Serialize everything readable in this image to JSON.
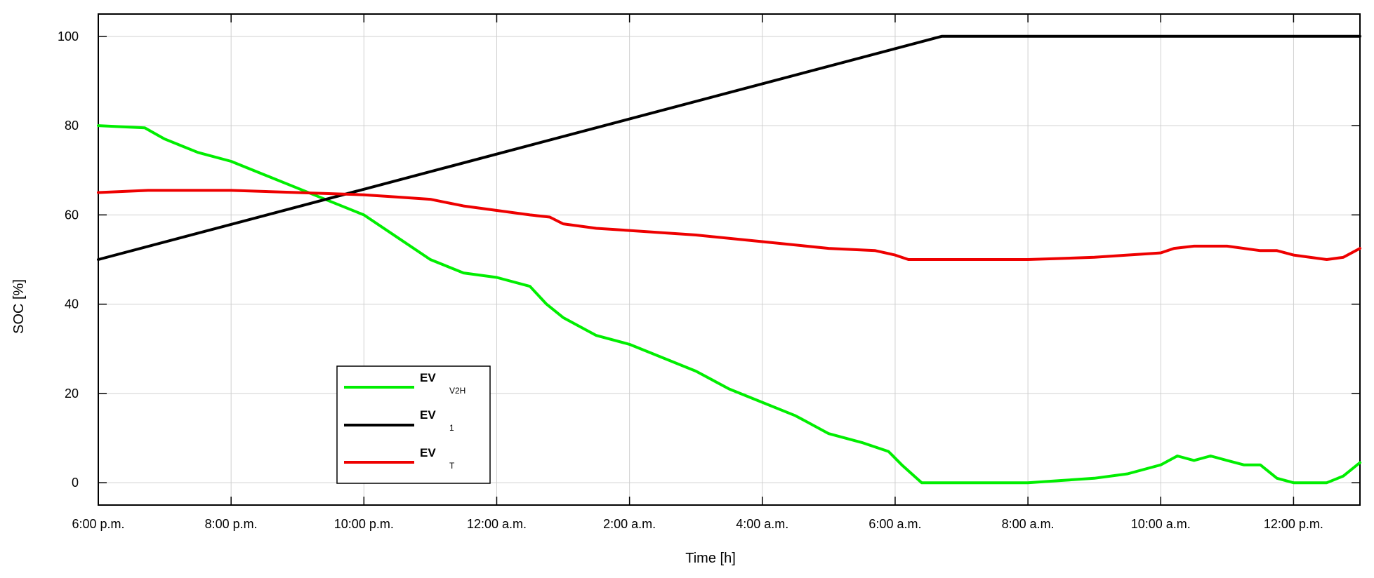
{
  "chart_data": {
    "type": "line",
    "title": "",
    "xlabel": "Time [h]",
    "ylabel": "SOC [%]",
    "xlim": [
      0,
      19
    ],
    "ylim": [
      -5,
      105
    ],
    "x_ticks": [
      {
        "value": 0,
        "label": "6:00 p.m."
      },
      {
        "value": 2,
        "label": "8:00 p.m."
      },
      {
        "value": 4,
        "label": "10:00 p.m."
      },
      {
        "value": 6,
        "label": "12:00 a.m."
      },
      {
        "value": 8,
        "label": "2:00 a.m."
      },
      {
        "value": 10,
        "label": "4:00 a.m."
      },
      {
        "value": 12,
        "label": "6:00 a.m."
      },
      {
        "value": 14,
        "label": "8:00 a.m."
      },
      {
        "value": 16,
        "label": "10:00 a.m."
      },
      {
        "value": 18,
        "label": "12:00 p.m."
      }
    ],
    "y_ticks": [
      {
        "value": 0,
        "label": "0"
      },
      {
        "value": 20,
        "label": "20"
      },
      {
        "value": 40,
        "label": "40"
      },
      {
        "value": 60,
        "label": "60"
      },
      {
        "value": 80,
        "label": "80"
      },
      {
        "value": 100,
        "label": "100"
      }
    ],
    "grid": true,
    "legend_position": "bottom-left",
    "series": [
      {
        "name": "EV",
        "subscript": "V2H",
        "color": "#00ee00",
        "x": [
          0,
          0.7,
          1,
          1.5,
          2,
          2.5,
          3,
          3.5,
          4,
          4.5,
          5,
          5.5,
          6,
          6.5,
          6.75,
          7,
          7.5,
          8,
          8.5,
          9,
          9.5,
          10,
          10.5,
          11,
          11.5,
          11.9,
          12.1,
          12.4,
          13,
          14,
          14.5,
          15,
          15.5,
          16,
          16.25,
          16.5,
          16.75,
          17,
          17.25,
          17.5,
          17.75,
          18,
          18.5,
          18.75,
          19
        ],
        "y": [
          80,
          79.5,
          77,
          74,
          72,
          69,
          66,
          63,
          60,
          55,
          50,
          47,
          46,
          44,
          40,
          37,
          33,
          31,
          28,
          25,
          21,
          18,
          15,
          11,
          9,
          7,
          4,
          0,
          0,
          0,
          0.5,
          1,
          2,
          4,
          6,
          5,
          6,
          5,
          4,
          4,
          1,
          0,
          0,
          1.5,
          4.5
        ]
      },
      {
        "name": "EV",
        "subscript": "1",
        "color": "#000000",
        "x": [
          0,
          12.7,
          19
        ],
        "y": [
          50,
          100,
          100
        ]
      },
      {
        "name": "EV",
        "subscript": "T",
        "color": "#ee0000",
        "x": [
          0,
          0.75,
          1,
          2,
          3,
          4,
          4.5,
          5,
          5.5,
          6,
          6.5,
          6.8,
          7,
          7.5,
          8,
          9,
          10,
          11,
          11.7,
          12,
          12.2,
          12.5,
          12.7,
          14,
          15,
          15.5,
          16,
          16.2,
          16.5,
          16.75,
          17,
          17.5,
          17.75,
          18,
          18.5,
          18.75,
          19
        ],
        "y": [
          65,
          65.5,
          65.5,
          65.5,
          65,
          64.5,
          64,
          63.5,
          62,
          61,
          60,
          59.5,
          58,
          57,
          56.5,
          55.5,
          54,
          52.5,
          52,
          51,
          50,
          50,
          50,
          50,
          50.5,
          51,
          51.5,
          52.5,
          53,
          53,
          53,
          52,
          52,
          51,
          50,
          50.5,
          52.5
        ]
      }
    ]
  }
}
